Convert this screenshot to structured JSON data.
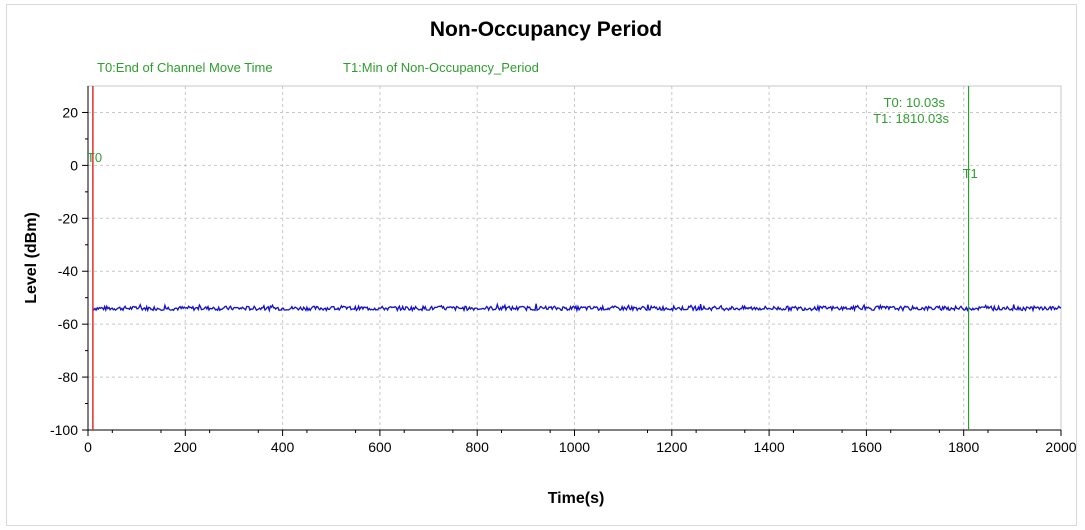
{
  "chart_data": {
    "type": "line",
    "title": "Non-Occupancy Period",
    "xlabel": "Time(s)",
    "ylabel": "Level (dBm)",
    "xlim": [
      0,
      2000
    ],
    "ylim": [
      -100,
      30
    ],
    "x_ticks": [
      0,
      200,
      400,
      600,
      800,
      1000,
      1200,
      1400,
      1600,
      1800,
      2000
    ],
    "y_ticks": [
      20,
      0,
      -20,
      -40,
      -60,
      -80,
      -100
    ],
    "grid": true,
    "series": [
      {
        "x_start": 10,
        "x_end": 2000,
        "level": -54,
        "color": "#1010cc"
      }
    ],
    "markers": [
      {
        "label": "T0",
        "x": 10.03,
        "color": "#e03030",
        "legend": "T0:End of Channel Move Time",
        "readout": "T0: 10.03s"
      },
      {
        "label": "T1",
        "x": 1810.03,
        "color": "#2e9e2e",
        "legend": "T1:Min of Non-Occupancy_Period",
        "readout": "T1: 1810.03s"
      }
    ]
  }
}
